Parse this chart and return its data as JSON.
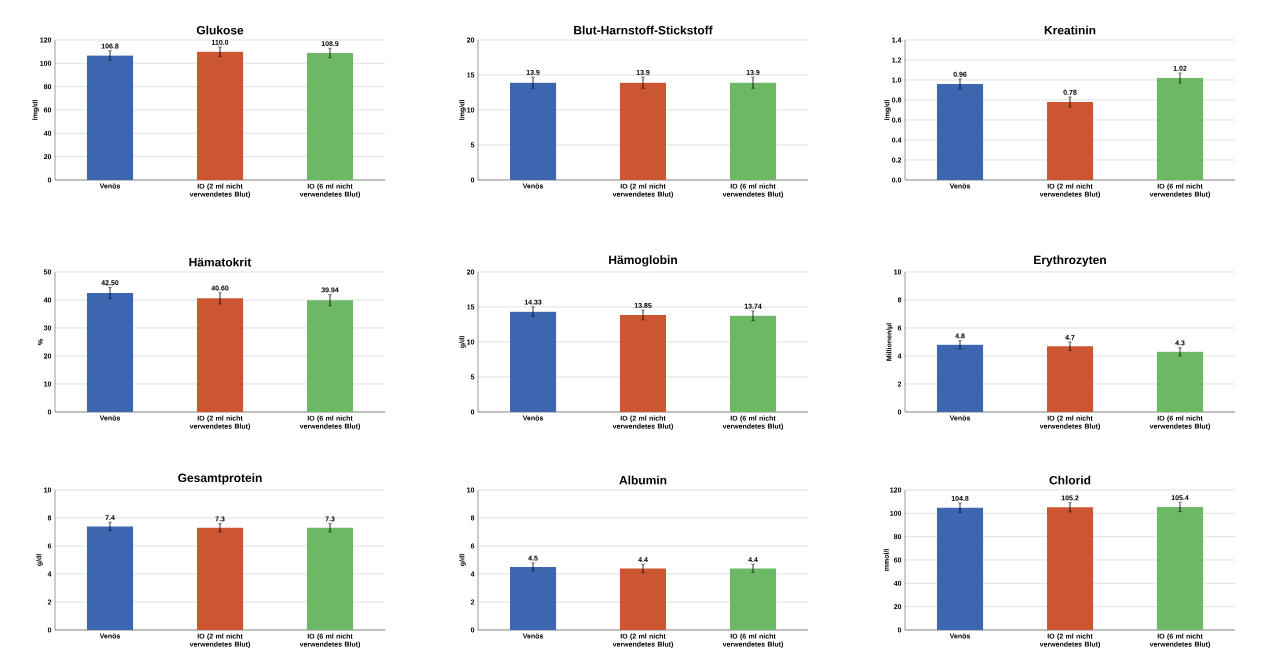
{
  "chart_data": [
    {
      "type": "bar",
      "title": "Glukose",
      "ylabel": "lmg/dl",
      "categories": [
        "Venös",
        "IO (2 ml nicht verwendetes Blut)",
        "IO (6 ml nicht verwendetes Blut)"
      ],
      "values": [
        106.8,
        110.0,
        108.9
      ],
      "errors": [
        4,
        4,
        4
      ],
      "value_labels": [
        "106.8",
        "110.0",
        "108.9"
      ],
      "colors": [
        "#3c67b0",
        "#cc5532",
        "#6db865"
      ],
      "ylim": [
        0,
        120
      ],
      "yticks": [
        0,
        20,
        40,
        60,
        80,
        100,
        120
      ],
      "grid": "y"
    },
    {
      "type": "bar",
      "title": "Blut-Harnstoff-Stickstoff",
      "ylabel": "lmg/dl",
      "categories": [
        "Venös",
        "IO (2 ml nicht verwendetes Blut)",
        "IO (6 ml nicht verwendetes Blut)"
      ],
      "values": [
        13.9,
        13.9,
        13.9
      ],
      "errors": [
        0.8,
        0.8,
        0.8
      ],
      "value_labels": [
        "13.9",
        "13.9",
        "13.9"
      ],
      "colors": [
        "#3c67b0",
        "#cc5532",
        "#6db865"
      ],
      "ylim": [
        0,
        20
      ],
      "yticks": [
        0,
        5,
        10,
        15,
        20
      ],
      "grid": "y"
    },
    {
      "type": "bar",
      "title": "Kreatinin",
      "ylabel": "lmg/dl",
      "categories": [
        "Venös",
        "IO (2 ml nicht verwendetes Blut)",
        "IO (6 ml nicht verwendetes Blut)"
      ],
      "values": [
        0.96,
        0.78,
        1.02
      ],
      "errors": [
        0.05,
        0.05,
        0.05
      ],
      "value_labels": [
        "0.96",
        "0.78",
        "1.02"
      ],
      "colors": [
        "#3c67b0",
        "#cc5532",
        "#6db865"
      ],
      "ylim": [
        0,
        1.4
      ],
      "yticks": [
        {
          "value": 0,
          "label": "0.0"
        },
        {
          "value": 0.2,
          "label": "0.2"
        },
        {
          "value": 0.4,
          "label": "0.4"
        },
        {
          "value": 0.6,
          "label": "0.6"
        },
        {
          "value": 0.8,
          "label": "0.8"
        },
        {
          "value": 1.0,
          "label": "1.0"
        },
        {
          "value": 1.2,
          "label": "1.2"
        },
        {
          "value": 1.4,
          "label": "1.4"
        }
      ],
      "grid": "y"
    },
    {
      "type": "bar",
      "title": "Hämatokrit",
      "ylabel": "%",
      "categories": [
        "Venös",
        "IO (2 ml nicht verwendetes Blut)",
        "IO (6 ml nicht verwendetes Blut)"
      ],
      "values": [
        42.5,
        40.6,
        39.94
      ],
      "errors": [
        2,
        2,
        2
      ],
      "value_labels": [
        "42.50",
        "40.60",
        "39.94"
      ],
      "colors": [
        "#3c67b0",
        "#cc5532",
        "#6db865"
      ],
      "ylim": [
        0,
        50
      ],
      "yticks": [
        0,
        10,
        20,
        30,
        40,
        50
      ],
      "grid": "y"
    },
    {
      "type": "bar",
      "title": "Hämoglobin",
      "ylabel": "g/dl",
      "categories": [
        "Venös",
        "IO (2 ml nicht verwendetes Blut)",
        "IO (6 ml nicht verwendetes Blut)"
      ],
      "values": [
        14.33,
        13.85,
        13.74
      ],
      "errors": [
        0.7,
        0.7,
        0.7
      ],
      "value_labels": [
        "14.33",
        "13.85",
        "13.74"
      ],
      "colors": [
        "#3c67b0",
        "#cc5532",
        "#6db865"
      ],
      "ylim": [
        0,
        20
      ],
      "yticks": [
        0,
        5,
        10,
        15,
        20
      ],
      "grid": "y"
    },
    {
      "type": "bar",
      "title": "Erythrozyten",
      "ylabel": "Millionen/µl",
      "categories": [
        "Venös",
        "IO (2 ml nicht verwendetes Blut)",
        "IO (6 ml nicht verwendetes Blut)"
      ],
      "values": [
        4.8,
        4.7,
        4.3
      ],
      "errors": [
        0.3,
        0.3,
        0.3
      ],
      "value_labels": [
        "4.8",
        "4.7",
        "4.3"
      ],
      "colors": [
        "#3c67b0",
        "#cc5532",
        "#6db865"
      ],
      "ylim": [
        0,
        10
      ],
      "yticks": [
        0,
        2,
        4,
        6,
        8,
        10
      ],
      "grid": "y"
    },
    {
      "type": "bar",
      "title": "Gesamtprotein",
      "ylabel": "g/dl",
      "categories": [
        "Venös",
        "IO (2 ml nicht verwendetes Blut)",
        "IO (6 ml nicht verwendetes Blut)"
      ],
      "values": [
        7.4,
        7.3,
        7.3
      ],
      "errors": [
        0.3,
        0.3,
        0.3
      ],
      "value_labels": [
        "7.4",
        "7.3",
        "7.3"
      ],
      "colors": [
        "#3c67b0",
        "#cc5532",
        "#6db865"
      ],
      "ylim": [
        0,
        10
      ],
      "yticks": [
        0,
        2,
        4,
        6,
        8,
        10
      ],
      "grid": "y"
    },
    {
      "type": "bar",
      "title": "Albumin",
      "ylabel": "g/dl",
      "categories": [
        "Venös",
        "IO (2 ml nicht verwendetes Blut)",
        "IO (6 ml nicht verwendetes Blut)"
      ],
      "values": [
        4.5,
        4.4,
        4.4
      ],
      "errors": [
        0.3,
        0.3,
        0.3
      ],
      "value_labels": [
        "4.5",
        "4.4",
        "4.4"
      ],
      "colors": [
        "#3c67b0",
        "#cc5532",
        "#6db865"
      ],
      "ylim": [
        0,
        10
      ],
      "yticks": [
        0,
        2,
        4,
        6,
        8,
        10
      ],
      "grid": "y"
    },
    {
      "type": "bar",
      "title": "Chlorid",
      "ylabel": "mmol/l",
      "categories": [
        "Venös",
        "IO (2 ml nicht verwendetes Blut)",
        "IO (6 ml nicht verwendetes Blut)"
      ],
      "values": [
        104.8,
        105.2,
        105.4
      ],
      "errors": [
        4,
        4,
        4
      ],
      "value_labels": [
        "104.8",
        "105.2",
        "105.4"
      ],
      "colors": [
        "#3c67b0",
        "#cc5532",
        "#6db865"
      ],
      "ylim": [
        0,
        120
      ],
      "yticks": [
        0,
        20,
        40,
        60,
        80,
        100,
        120
      ],
      "grid": "y"
    }
  ]
}
